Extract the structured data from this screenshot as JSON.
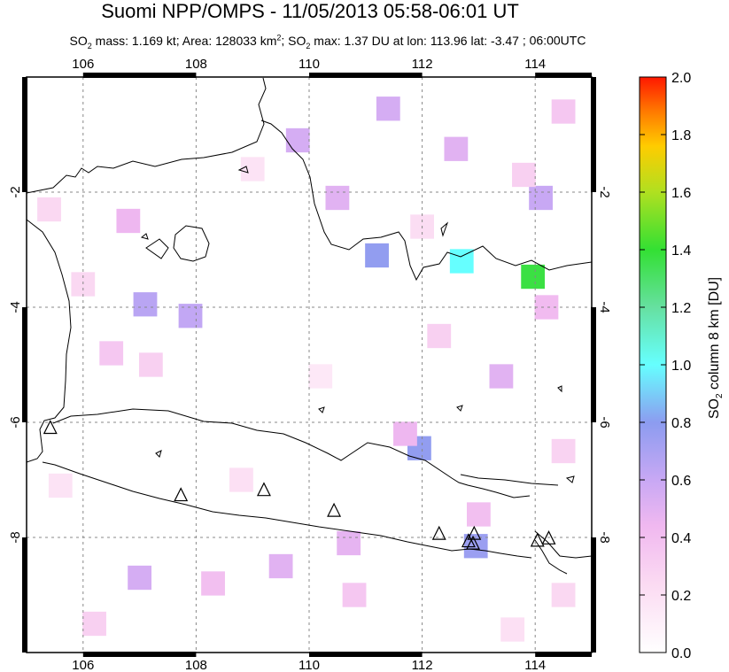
{
  "header": {
    "title": "Suomi NPP/OMPS - 11/05/2013 05:58-06:01 UT",
    "so2_mass": "SO2 mass: 1.169 kt",
    "area": "Area: 128033 km2",
    "so2_max": "SO2 max: 1.37 DU at lon: 113.96 lat: -3.47",
    "time": "06:00UTC"
  },
  "map": {
    "lon_range": [
      105,
      115
    ],
    "lat_range": [
      -10,
      0
    ],
    "lon_ticks": [
      "106",
      "108",
      "110",
      "112",
      "114"
    ],
    "lat_ticks": [
      "-2",
      "-4",
      "-6",
      "-8"
    ],
    "grid": "dashed",
    "volcanoes": [
      {
        "lon": 105.42,
        "lat": -6.1
      },
      {
        "lon": 107.73,
        "lat": -7.27
      },
      {
        "lon": 109.2,
        "lat": -7.18
      },
      {
        "lon": 110.44,
        "lat": -7.54
      },
      {
        "lon": 112.3,
        "lat": -7.94
      },
      {
        "lon": 112.92,
        "lat": -7.94
      },
      {
        "lon": 112.9,
        "lat": -8.11
      },
      {
        "lon": 112.82,
        "lat": -8.07
      },
      {
        "lon": 114.04,
        "lat": -8.06
      },
      {
        "lon": 114.24,
        "lat": -8.02
      }
    ],
    "pixels": [
      {
        "lon": 113.96,
        "lat": -3.47,
        "value": 1.37
      },
      {
        "lon": 112.7,
        "lat": -3.2,
        "value": 1.0
      },
      {
        "lon": 111.2,
        "lat": -3.1,
        "value": 0.78
      },
      {
        "lon": 111.95,
        "lat": -6.45,
        "value": 0.78
      },
      {
        "lon": 112.95,
        "lat": -8.15,
        "value": 0.75
      },
      {
        "lon": 107.1,
        "lat": -3.95,
        "value": 0.65
      },
      {
        "lon": 107.9,
        "lat": -4.15,
        "value": 0.62
      },
      {
        "lon": 114.1,
        "lat": -2.1,
        "value": 0.6
      },
      {
        "lon": 111.4,
        "lat": -0.55,
        "value": 0.55
      },
      {
        "lon": 109.8,
        "lat": -1.1,
        "value": 0.55
      },
      {
        "lon": 112.6,
        "lat": -1.25,
        "value": 0.5
      },
      {
        "lon": 110.5,
        "lat": -2.1,
        "value": 0.5
      },
      {
        "lon": 113.4,
        "lat": -5.2,
        "value": 0.5
      },
      {
        "lon": 107.0,
        "lat": -8.7,
        "value": 0.55
      },
      {
        "lon": 109.5,
        "lat": -8.5,
        "value": 0.5
      },
      {
        "lon": 110.7,
        "lat": -8.1,
        "value": 0.48
      },
      {
        "lon": 106.8,
        "lat": -2.5,
        "value": 0.45
      },
      {
        "lon": 114.2,
        "lat": -4.0,
        "value": 0.42
      },
      {
        "lon": 111.7,
        "lat": -6.2,
        "value": 0.45
      },
      {
        "lon": 113.0,
        "lat": -7.6,
        "value": 0.4
      },
      {
        "lon": 108.3,
        "lat": -8.8,
        "value": 0.4
      },
      {
        "lon": 110.8,
        "lat": -9.0,
        "value": 0.35
      },
      {
        "lon": 106.5,
        "lat": -4.8,
        "value": 0.35
      },
      {
        "lon": 107.2,
        "lat": -5.0,
        "value": 0.3
      },
      {
        "lon": 114.5,
        "lat": -0.6,
        "value": 0.35
      },
      {
        "lon": 113.8,
        "lat": -1.7,
        "value": 0.3
      },
      {
        "lon": 112.3,
        "lat": -4.5,
        "value": 0.3
      },
      {
        "lon": 105.4,
        "lat": -2.3,
        "value": 0.25
      },
      {
        "lon": 106.0,
        "lat": -3.6,
        "value": 0.25
      },
      {
        "lon": 112.0,
        "lat": -2.6,
        "value": 0.22
      },
      {
        "lon": 114.5,
        "lat": -6.5,
        "value": 0.28
      },
      {
        "lon": 114.5,
        "lat": -9.0,
        "value": 0.25
      },
      {
        "lon": 106.2,
        "lat": -9.5,
        "value": 0.3
      },
      {
        "lon": 108.8,
        "lat": -7.0,
        "value": 0.2
      },
      {
        "lon": 109.0,
        "lat": -1.6,
        "value": 0.18
      },
      {
        "lon": 110.2,
        "lat": -5.2,
        "value": 0.15
      },
      {
        "lon": 105.6,
        "lat": -7.1,
        "value": 0.18
      },
      {
        "lon": 113.6,
        "lat": -9.6,
        "value": 0.2
      }
    ]
  },
  "colorbar": {
    "label": "SO2 column 8 km [DU]",
    "ticks": [
      "0.0",
      "0.2",
      "0.4",
      "0.6",
      "0.8",
      "1.0",
      "1.2",
      "1.4",
      "1.6",
      "1.8",
      "2.0"
    ],
    "range": [
      0,
      2
    ]
  }
}
